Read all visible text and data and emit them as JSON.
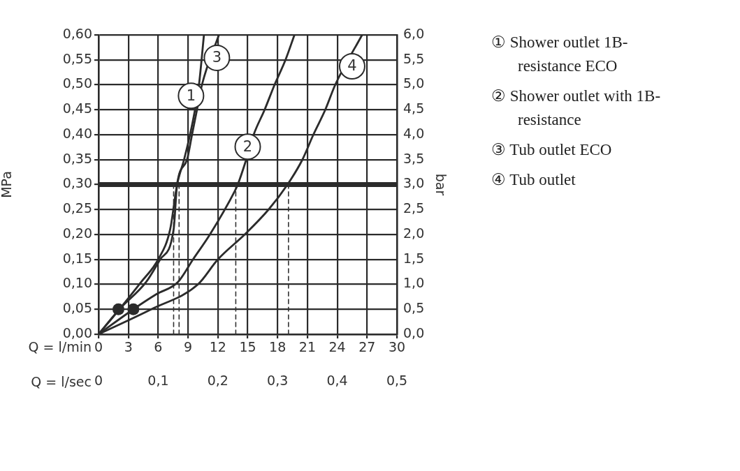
{
  "chart_data": {
    "type": "line",
    "xlabel": "Q = l/min",
    "x2label": "Q = l/sec",
    "ylabel": "MPa",
    "y2label": "bar",
    "xlim": [
      0,
      30
    ],
    "xticks": [
      0,
      3,
      6,
      9,
      12,
      15,
      18,
      21,
      24,
      27,
      30
    ],
    "x2lim": [
      0,
      0.5
    ],
    "x2ticks": [
      {
        "value": 0,
        "label": "0"
      },
      {
        "value": 0.1,
        "label": "0,1"
      },
      {
        "value": 0.2,
        "label": "0,2"
      },
      {
        "value": 0.3,
        "label": "0,3"
      },
      {
        "value": 0.4,
        "label": "0,4"
      },
      {
        "value": 0.5,
        "label": "0,5"
      }
    ],
    "ylim": [
      0,
      0.6
    ],
    "yticks": [
      {
        "value": 0,
        "label": "0,00"
      },
      {
        "value": 0.05,
        "label": "0,05"
      },
      {
        "value": 0.1,
        "label": "0,10"
      },
      {
        "value": 0.15,
        "label": "0,15"
      },
      {
        "value": 0.2,
        "label": "0,20"
      },
      {
        "value": 0.25,
        "label": "0,25"
      },
      {
        "value": 0.3,
        "label": "0,30"
      },
      {
        "value": 0.35,
        "label": "0,35"
      },
      {
        "value": 0.4,
        "label": "0,40"
      },
      {
        "value": 0.45,
        "label": "0,45"
      },
      {
        "value": 0.5,
        "label": "0,50"
      },
      {
        "value": 0.55,
        "label": "0,55"
      },
      {
        "value": 0.6,
        "label": "0,60"
      }
    ],
    "y2lim": [
      0,
      6
    ],
    "y2ticks": [
      {
        "value": 0,
        "label": "0,0"
      },
      {
        "value": 0.5,
        "label": "0,5"
      },
      {
        "value": 1,
        "label": "1,0"
      },
      {
        "value": 1.5,
        "label": "1,5"
      },
      {
        "value": 2,
        "label": "2,0"
      },
      {
        "value": 2.5,
        "label": "2,5"
      },
      {
        "value": 3,
        "label": "3,0"
      },
      {
        "value": 3.5,
        "label": "3,5"
      },
      {
        "value": 4,
        "label": "4,0"
      },
      {
        "value": 4.5,
        "label": "4,5"
      },
      {
        "value": 5,
        "label": "5,0"
      },
      {
        "value": 5.5,
        "label": "5,5"
      },
      {
        "value": 6,
        "label": "6,0"
      }
    ],
    "grid": true,
    "series": [
      {
        "color": "#2b2b2b",
        "marker": "none",
        "line_style": "solid",
        "x": [
          0,
          2.1,
          4.3,
          6.0,
          7.2,
          7.9,
          8.6,
          9.2,
          9.7,
          10.1,
          10.6
        ],
        "values": [
          0,
          0.05,
          0.105,
          0.15,
          0.21,
          0.3,
          0.35,
          0.4,
          0.45,
          0.5,
          0.6
        ]
      },
      {
        "color": "#2b2b2b",
        "marker": "none",
        "line_style": "solid",
        "x": [
          0,
          3.5,
          5.8,
          8.0,
          9.5,
          11.2,
          13.7,
          14.0,
          14.85,
          15.6,
          16.7,
          17.7,
          18.8,
          19.7
        ],
        "values": [
          0,
          0.05,
          0.08,
          0.105,
          0.15,
          0.2,
          0.287,
          0.3,
          0.35,
          0.4,
          0.45,
          0.5,
          0.55,
          0.6
        ]
      },
      {
        "color": "#2b2b2b",
        "marker": "none",
        "line_style": "solid",
        "x": [
          0,
          2.1,
          4.8,
          6.2,
          7.55,
          7.9,
          8.9,
          9.4,
          9.9,
          10.4,
          12.1
        ],
        "values": [
          0,
          0.05,
          0.105,
          0.15,
          0.21,
          0.3,
          0.35,
          0.4,
          0.45,
          0.5,
          0.6
        ]
      },
      {
        "color": "#2b2b2b",
        "marker": "none",
        "line_style": "solid",
        "x": [
          0,
          5.3,
          10.0,
          12.0,
          14.7,
          17.1,
          19.0,
          20.5,
          21.6,
          22.8,
          23.8,
          26.5
        ],
        "values": [
          0,
          0.05,
          0.1,
          0.15,
          0.2,
          0.25,
          0.3,
          0.35,
          0.4,
          0.45,
          0.5,
          0.6
        ]
      },
      {
        "type": "scatter",
        "color": "#2b2b2b",
        "marker": "circle",
        "x": [
          2.0,
          3.5
        ],
        "values": [
          0.05,
          0.05
        ]
      },
      {
        "color": "#333333",
        "marker": "none",
        "line_style": "dashed",
        "x": [
          7.55,
          7.55
        ],
        "values": [
          0,
          0.3
        ]
      },
      {
        "color": "#333333",
        "marker": "none",
        "line_style": "dashed",
        "x": [
          8.1,
          8.1
        ],
        "values": [
          0,
          0.3
        ]
      },
      {
        "color": "#333333",
        "marker": "none",
        "line_style": "dashed",
        "x": [
          13.8,
          13.8
        ],
        "values": [
          0,
          0.3
        ]
      },
      {
        "color": "#333333",
        "marker": "none",
        "line_style": "dashed",
        "x": [
          19.1,
          19.1
        ],
        "values": [
          0,
          0.3
        ]
      }
    ],
    "ref_lines": [
      {
        "axis": "y",
        "value": 0.3,
        "color": "#2b2b2b"
      }
    ],
    "annotations": [
      {
        "text": "1",
        "x": 9.3,
        "y": 0.478
      },
      {
        "text": "2",
        "x": 15.0,
        "y": 0.376
      },
      {
        "text": "3",
        "x": 11.9,
        "y": 0.554
      },
      {
        "text": "4",
        "x": 25.5,
        "y": 0.537
      },
      "① Shower outlet 1B-resistance ECO",
      "② Shower outlet with 1B-resistance",
      "③ Tub outlet ECO",
      "④ Tub outlet"
    ]
  }
}
